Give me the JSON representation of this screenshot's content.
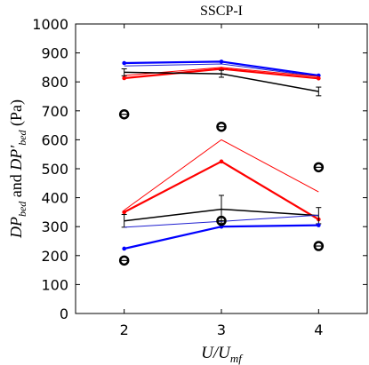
{
  "chart_data": {
    "type": "line",
    "title": "SSCP-I",
    "xlabel_main": "U/U",
    "xlabel_sub": "mf",
    "ylabel_main": "DP",
    "ylabel_sub": "bed",
    "ylabel_mid": " and ",
    "ylabel_main2": "DP′",
    "ylabel_sub2": "bed",
    "ylabel_unit": " (Pa)",
    "xlim": [
      1.5,
      4.5
    ],
    "ylim": [
      0,
      1000
    ],
    "xticks": [
      2,
      3,
      4
    ],
    "yticks": [
      0,
      100,
      200,
      300,
      400,
      500,
      600,
      700,
      800,
      900,
      1000
    ],
    "grid": false,
    "series": [
      {
        "color": "#0000ff",
        "width": 2.2,
        "marker": "dot",
        "x": [
          2,
          3,
          4
        ],
        "y": [
          865,
          870,
          822
        ]
      },
      {
        "color": "#2020d0",
        "width": 1,
        "marker": "none",
        "x": [
          2,
          3,
          4
        ],
        "y": [
          855,
          862,
          818
        ]
      },
      {
        "color": "#ff0000",
        "width": 1,
        "marker": "none",
        "x": [
          2,
          3,
          4
        ],
        "y": [
          822,
          850,
          818
        ]
      },
      {
        "color": "#ff0000",
        "width": 2.2,
        "marker": "dot",
        "x": [
          2,
          3,
          4
        ],
        "y": [
          813,
          845,
          812
        ]
      },
      {
        "color": "#000000",
        "width": 1.5,
        "marker": "errorbar",
        "x": [
          2,
          3,
          4
        ],
        "y": [
          833,
          828,
          767
        ],
        "err": [
          12,
          12,
          15
        ]
      },
      {
        "color": "#ff0000",
        "width": 1,
        "marker": "none",
        "x": [
          2,
          3,
          4
        ],
        "y": [
          357,
          600,
          420
        ]
      },
      {
        "color": "#ff0000",
        "width": 2.2,
        "marker": "dot",
        "x": [
          2,
          3,
          4
        ],
        "y": [
          350,
          525,
          325
        ]
      },
      {
        "color": "#000000",
        "width": 1.5,
        "marker": "errorbar",
        "x": [
          2,
          3,
          4
        ],
        "y": [
          320,
          360,
          338
        ],
        "err": [
          22,
          48,
          28
        ]
      },
      {
        "color": "#2020d0",
        "width": 1,
        "marker": "none",
        "x": [
          2,
          3,
          4
        ],
        "y": [
          298,
          318,
          340
        ]
      },
      {
        "color": "#0000ff",
        "width": 2.2,
        "marker": "dot",
        "x": [
          2,
          3,
          4
        ],
        "y": [
          224,
          300,
          305
        ]
      },
      {
        "color": "#000000",
        "width": 2.5,
        "marker": "circle",
        "x": [
          2,
          3,
          4,
          2,
          3,
          4
        ],
        "y": [
          688,
          645,
          505,
          183,
          320,
          233
        ]
      }
    ]
  }
}
